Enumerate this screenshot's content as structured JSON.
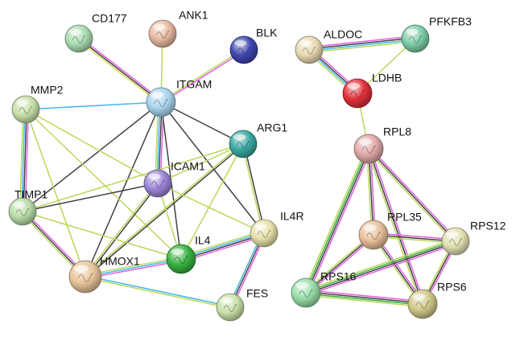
{
  "nodes": [
    {
      "id": "CD177",
      "label": "CD177",
      "color": "#a8dcb0"
    },
    {
      "id": "ANK1",
      "label": "ANK1",
      "color": "#e8b8a0"
    },
    {
      "id": "BLK",
      "label": "BLK",
      "color": "#3e45b0"
    },
    {
      "id": "ITGAM",
      "label": "ITGAM",
      "color": "#a8d4ee"
    },
    {
      "id": "MMP2",
      "label": "MMP2",
      "color": "#c8e0a8"
    },
    {
      "id": "ARG1",
      "label": "ARG1",
      "color": "#3aa8a0"
    },
    {
      "id": "ICAM1",
      "label": "ICAM1",
      "color": "#9b86d6"
    },
    {
      "id": "TIMP1",
      "label": "TIMP1",
      "color": "#b8dca8"
    },
    {
      "id": "IL4R",
      "label": "IL4R",
      "color": "#e8e0a8"
    },
    {
      "id": "IL4",
      "label": "IL4",
      "color": "#38b040"
    },
    {
      "id": "HMOX1",
      "label": "HMOX1",
      "color": "#e8c49a"
    },
    {
      "id": "FES",
      "label": "FES",
      "color": "#c8e0a8"
    },
    {
      "id": "ALDOC",
      "label": "ALDOC",
      "color": "#e8d8b0"
    },
    {
      "id": "PFKFB3",
      "label": "PFKFB3",
      "color": "#7ccca8"
    },
    {
      "id": "LDHB",
      "label": "LDHB",
      "color": "#e0303a"
    },
    {
      "id": "RPL8",
      "label": "RPL8",
      "color": "#e0a8a8"
    },
    {
      "id": "RPL35",
      "label": "RPL35",
      "color": "#e8c09a"
    },
    {
      "id": "RPS12",
      "label": "RPS12",
      "color": "#e0e0b0"
    },
    {
      "id": "RPS16",
      "label": "RPS16",
      "color": "#98dca8"
    },
    {
      "id": "RPS6",
      "label": "RPS6",
      "color": "#d0c888"
    }
  ],
  "edges": [
    {
      "s": "CD177",
      "t": "ITGAM",
      "evidence": [
        "#e060e0",
        "#404040",
        "#d8e050"
      ]
    },
    {
      "s": "ANK1",
      "t": "ITGAM",
      "evidence": [
        "#b8d858"
      ]
    },
    {
      "s": "BLK",
      "t": "ITGAM",
      "evidence": [
        "#e060e0",
        "#b8d858"
      ]
    },
    {
      "s": "MMP2",
      "t": "ITGAM",
      "evidence": [
        "#40b8e8"
      ]
    },
    {
      "s": "ITGAM",
      "t": "ARG1",
      "evidence": [
        "#404040"
      ]
    },
    {
      "s": "ITGAM",
      "t": "ICAM1",
      "evidence": [
        "#e060e0",
        "#404040",
        "#40b8e8",
        "#b8d858"
      ]
    },
    {
      "s": "ITGAM",
      "t": "TIMP1",
      "evidence": [
        "#404040"
      ]
    },
    {
      "s": "ITGAM",
      "t": "HMOX1",
      "evidence": [
        "#404040"
      ]
    },
    {
      "s": "ITGAM",
      "t": "IL4",
      "evidence": [
        "#404040"
      ]
    },
    {
      "s": "ITGAM",
      "t": "IL4R",
      "evidence": [
        "#404040"
      ]
    },
    {
      "s": "MMP2",
      "t": "TIMP1",
      "evidence": [
        "#e060e0",
        "#404040",
        "#40b8e8",
        "#b8d858"
      ]
    },
    {
      "s": "MMP2",
      "t": "ICAM1",
      "evidence": [
        "#b8d858"
      ]
    },
    {
      "s": "MMP2",
      "t": "HMOX1",
      "evidence": [
        "#b8d858"
      ]
    },
    {
      "s": "MMP2",
      "t": "IL4",
      "evidence": [
        "#b8d858"
      ]
    },
    {
      "s": "ARG1",
      "t": "ICAM1",
      "evidence": [
        "#b8d858"
      ]
    },
    {
      "s": "ARG1",
      "t": "IL4R",
      "evidence": [
        "#404040",
        "#b8d858"
      ]
    },
    {
      "s": "ARG1",
      "t": "IL4",
      "evidence": [
        "#b8d858"
      ]
    },
    {
      "s": "ARG1",
      "t": "HMOX1",
      "evidence": [
        "#404040",
        "#b8d858"
      ]
    },
    {
      "s": "ARG1",
      "t": "TIMP1",
      "evidence": [
        "#b8d858"
      ]
    },
    {
      "s": "ICAM1",
      "t": "TIMP1",
      "evidence": [
        "#404040"
      ]
    },
    {
      "s": "ICAM1",
      "t": "IL4",
      "evidence": [
        "#b8d858"
      ]
    },
    {
      "s": "ICAM1",
      "t": "HMOX1",
      "evidence": [
        "#404040",
        "#b8d858"
      ]
    },
    {
      "s": "ICAM1",
      "t": "IL4R",
      "evidence": [
        "#b8d858"
      ]
    },
    {
      "s": "TIMP1",
      "t": "HMOX1",
      "evidence": [
        "#e060e0",
        "#404040",
        "#b8d858"
      ]
    },
    {
      "s": "TIMP1",
      "t": "IL4",
      "evidence": [
        "#b8d858"
      ]
    },
    {
      "s": "IL4R",
      "t": "IL4",
      "evidence": [
        "#e060e0",
        "#404040",
        "#40b8e8",
        "#b8d858"
      ]
    },
    {
      "s": "IL4R",
      "t": "FES",
      "evidence": [
        "#e060e0",
        "#404040",
        "#40b8e8"
      ]
    },
    {
      "s": "IL4",
      "t": "HMOX1",
      "evidence": [
        "#e060e0",
        "#40b8e8",
        "#b8d858"
      ]
    },
    {
      "s": "HMOX1",
      "t": "FES",
      "evidence": [
        "#40b8e8",
        "#b8d858"
      ]
    },
    {
      "s": "ALDOC",
      "t": "PFKFB3",
      "evidence": [
        "#e060e0",
        "#404040",
        "#40b8e8",
        "#b8d858"
      ]
    },
    {
      "s": "ALDOC",
      "t": "LDHB",
      "evidence": [
        "#e060e0",
        "#404040",
        "#40b8e8",
        "#b8d858"
      ]
    },
    {
      "s": "PFKFB3",
      "t": "LDHB",
      "evidence": [
        "#b8d858"
      ]
    },
    {
      "s": "LDHB",
      "t": "RPL8",
      "evidence": [
        "#b8d858"
      ]
    },
    {
      "s": "RPL8",
      "t": "RPL35",
      "evidence": [
        "#e060e0",
        "#404040",
        "#b8d858"
      ]
    },
    {
      "s": "RPL8",
      "t": "RPS12",
      "evidence": [
        "#e060e0",
        "#404040",
        "#b8d858"
      ]
    },
    {
      "s": "RPL8",
      "t": "RPS16",
      "evidence": [
        "#e060e0",
        "#404040",
        "#38b040",
        "#b8d858"
      ]
    },
    {
      "s": "RPL8",
      "t": "RPS6",
      "evidence": [
        "#e060e0",
        "#404040",
        "#b8d858"
      ]
    },
    {
      "s": "RPL35",
      "t": "RPS12",
      "evidence": [
        "#e060e0",
        "#404040",
        "#b8d858"
      ]
    },
    {
      "s": "RPL35",
      "t": "RPS16",
      "evidence": [
        "#e060e0",
        "#404040",
        "#b8d858"
      ]
    },
    {
      "s": "RPL35",
      "t": "RPS6",
      "evidence": [
        "#e060e0",
        "#404040",
        "#b8d858"
      ]
    },
    {
      "s": "RPS12",
      "t": "RPS16",
      "evidence": [
        "#e060e0",
        "#404040",
        "#38b040",
        "#b8d858"
      ]
    },
    {
      "s": "RPS12",
      "t": "RPS6",
      "evidence": [
        "#e060e0",
        "#404040",
        "#b8d858"
      ]
    },
    {
      "s": "RPS16",
      "t": "RPS6",
      "evidence": [
        "#e060e0",
        "#404040",
        "#38b040",
        "#b8d858"
      ]
    }
  ]
}
